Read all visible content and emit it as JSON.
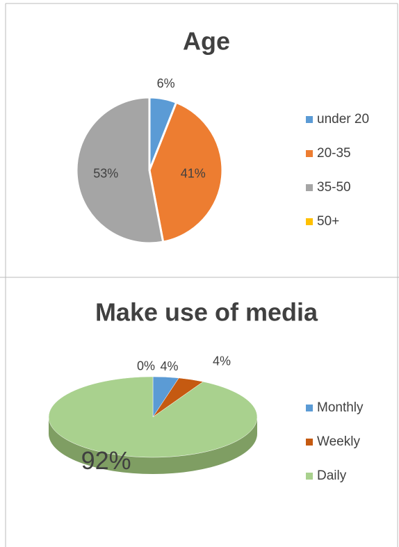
{
  "chart_data": [
    {
      "type": "pie",
      "title": "Age",
      "categories": [
        "under 20",
        "20-35",
        "35-50",
        "50+"
      ],
      "values": [
        6,
        41,
        53,
        0
      ],
      "value_labels": [
        "6%",
        "41%",
        "53%",
        null
      ],
      "colors": [
        "#5b9bd5",
        "#ed7d31",
        "#a5a5a5",
        "#ffc000"
      ],
      "legend": "right"
    },
    {
      "type": "pie3d",
      "title": "Make use of media",
      "categories": [
        "Monthly",
        "Weekly",
        "Daily",
        null
      ],
      "values": [
        4,
        4,
        92,
        0
      ],
      "value_labels": [
        "4%",
        "4%",
        "92%",
        "0%"
      ],
      "colors": [
        "#5b9bd5",
        "#c55a11",
        "#a9d18e",
        "#ffc000"
      ],
      "legend": "right"
    }
  ]
}
